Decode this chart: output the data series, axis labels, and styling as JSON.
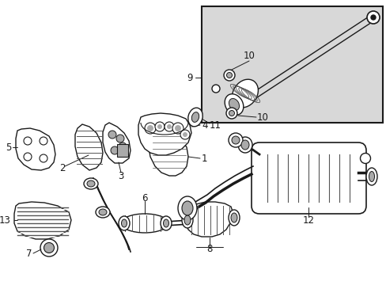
{
  "bg_color": "#ffffff",
  "line_color": "#1a1a1a",
  "gray": "#555555",
  "lgray": "#aaaaaa",
  "inset_bg": "#d8d8d8",
  "fig_width": 4.89,
  "fig_height": 3.6,
  "dpi": 100,
  "label_fs": 8.5
}
